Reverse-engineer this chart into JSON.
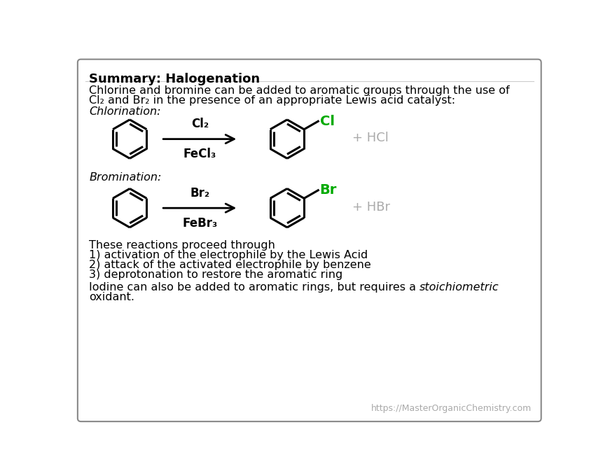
{
  "title": "Summary: Halogenation",
  "intro_line1": "Chlorine and bromine can be added to aromatic groups through the use of",
  "intro_line2": "Cl₂ and Br₂ in the presence of an appropriate Lewis acid catalyst:",
  "chlorination_label": "Chlorination:",
  "bromination_label": "Bromination:",
  "chlorination_reagent_top": "Cl₂",
  "chlorination_reagent_bot": "FeCl₃",
  "bromination_reagent_top": "Br₂",
  "bromination_reagent_bot": "FeBr₃",
  "chlorination_byproduct": "+ HCl",
  "bromination_byproduct": "+ HBr",
  "cl_color": "#00aa00",
  "br_color": "#00aa00",
  "byproduct_color": "#aaaaaa",
  "background_color": "#ffffff",
  "border_color": "#888888",
  "text_color": "#000000",
  "summary_line1": "These reactions proceed through",
  "summary_line2": "1) activation of the electrophile by the Lewis Acid",
  "summary_line3": "2) attack of the activated electrophile by benzene",
  "summary_line4": "3) deprotonation to restore the aromatic ring",
  "iodine_normal": "Iodine can also be added to aromatic rings, but requires a ",
  "iodine_italic": "stoichiometric",
  "iodine_line2": "oxidant.",
  "url_text": "https://MasterOrganicChemistry.com",
  "font_size_title": 13,
  "font_size_body": 11.5,
  "font_size_reagent": 12,
  "font_size_byproduct": 13,
  "font_size_url": 9
}
